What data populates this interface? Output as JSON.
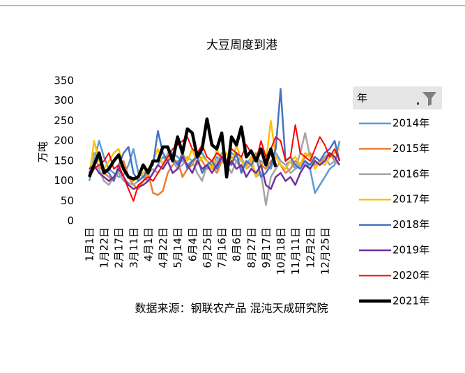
{
  "chart_data": {
    "type": "line",
    "title": "大豆周度到港",
    "y_label": "万吨",
    "source": "数据来源：钢联农产品 混沌天成研究院",
    "legend_title": "年",
    "legend_position": "right",
    "categories": [
      "1月1日",
      null,
      null,
      "1月22日",
      null,
      null,
      "2月17日",
      null,
      null,
      "3月11日",
      null,
      null,
      "4月1日",
      null,
      null,
      "4月22日",
      null,
      null,
      "5月14日",
      null,
      null,
      "6月4日",
      null,
      null,
      "6月25日",
      null,
      null,
      "7月16日",
      null,
      null,
      "8月6日",
      null,
      null,
      "8月27日",
      null,
      null,
      "9月17日",
      null,
      null,
      "10月18日",
      null,
      null,
      "11月11日",
      null,
      null,
      "12月2日",
      null,
      null,
      "12月25日",
      null,
      null,
      null
    ],
    "ylim": [
      0,
      350
    ],
    "yticks": [
      0,
      50,
      100,
      150,
      200,
      250,
      300,
      350
    ],
    "series": [
      {
        "name": "2014年",
        "color": "#5b9bd5",
        "width": 2.5,
        "values": [
          100,
          150,
          200,
          160,
          130,
          120,
          110,
          115,
          140,
          180,
          120,
          110,
          100,
          120,
          140,
          160,
          150,
          170,
          160,
          150,
          140,
          150,
          160,
          170,
          150,
          140,
          160,
          150,
          140,
          170,
          160,
          150,
          140,
          160,
          150,
          150,
          140,
          130,
          170,
          150,
          140,
          150,
          130,
          140,
          150,
          130,
          70,
          90,
          110,
          130,
          140,
          200
        ]
      },
      {
        "name": "2015年",
        "color": "#ed7d31",
        "width": 2.5,
        "values": [
          110,
          130,
          140,
          120,
          110,
          100,
          130,
          150,
          110,
          90,
          80,
          100,
          120,
          70,
          65,
          75,
          120,
          140,
          150,
          110,
          130,
          140,
          170,
          150,
          130,
          140,
          120,
          150,
          140,
          160,
          150,
          130,
          140,
          150,
          170,
          140,
          130,
          150,
          160,
          140,
          120,
          130,
          150,
          140,
          160,
          170,
          150,
          140,
          160,
          170,
          150,
          140
        ]
      },
      {
        "name": "2016年",
        "color": "#a5a5a5",
        "width": 2.5,
        "values": [
          120,
          170,
          130,
          100,
          90,
          110,
          120,
          100,
          95,
          90,
          100,
          110,
          120,
          130,
          120,
          140,
          170,
          150,
          130,
          140,
          160,
          150,
          120,
          100,
          140,
          130,
          150,
          170,
          140,
          120,
          150,
          160,
          130,
          140,
          110,
          120,
          40,
          110,
          130,
          150,
          140,
          120,
          130,
          170,
          220,
          160,
          140,
          150,
          160,
          140,
          150,
          140
        ]
      },
      {
        "name": "2017年",
        "color": "#ffc000",
        "width": 2.5,
        "values": [
          110,
          200,
          150,
          130,
          150,
          170,
          180,
          130,
          110,
          100,
          110,
          120,
          130,
          150,
          180,
          140,
          160,
          150,
          200,
          170,
          150,
          180,
          140,
          160,
          150,
          130,
          180,
          150,
          170,
          140,
          190,
          150,
          130,
          160,
          110,
          140,
          150,
          250,
          160,
          140,
          130,
          150,
          160,
          140,
          170,
          160,
          130,
          150,
          140,
          160,
          170,
          180
        ]
      },
      {
        "name": "2018年",
        "color": "#4472c4",
        "width": 2.5,
        "values": [
          120,
          140,
          160,
          130,
          120,
          100,
          140,
          170,
          185,
          120,
          100,
          110,
          130,
          140,
          225,
          170,
          150,
          160,
          140,
          170,
          130,
          150,
          160,
          120,
          140,
          150,
          130,
          160,
          150,
          140,
          170,
          120,
          150,
          140,
          160,
          110,
          120,
          140,
          180,
          330,
          150,
          160,
          140,
          130,
          150,
          140,
          160,
          150,
          170,
          180,
          200,
          150
        ]
      },
      {
        "name": "2019年",
        "color": "#7030a0",
        "width": 2.5,
        "values": [
          130,
          140,
          120,
          110,
          100,
          110,
          130,
          110,
          90,
          80,
          85,
          90,
          100,
          120,
          140,
          130,
          150,
          120,
          130,
          160,
          140,
          120,
          150,
          130,
          140,
          120,
          140,
          160,
          130,
          150,
          130,
          140,
          110,
          130,
          120,
          140,
          90,
          80,
          110,
          120,
          100,
          110,
          90,
          120,
          140,
          130,
          150,
          140,
          150,
          170,
          160,
          140
        ]
      },
      {
        "name": "2020年",
        "color": "#ff0000",
        "width": 2,
        "values": [
          120,
          130,
          140,
          150,
          170,
          130,
          140,
          110,
          80,
          50,
          90,
          100,
          110,
          100,
          120,
          140,
          160,
          180,
          190,
          200,
          210,
          180,
          170,
          190,
          160,
          150,
          170,
          160,
          150,
          180,
          170,
          160,
          190,
          170,
          150,
          200,
          160,
          180,
          210,
          200,
          150,
          160,
          240,
          170,
          160,
          150,
          180,
          210,
          190,
          160,
          180,
          150
        ]
      },
      {
        "name": "2021年",
        "color": "#000000",
        "width": 4.5,
        "values": [
          110,
          140,
          170,
          120,
          130,
          150,
          165,
          130,
          110,
          105,
          110,
          140,
          120,
          150,
          150,
          185,
          185,
          150,
          210,
          170,
          230,
          220,
          160,
          180,
          255,
          190,
          180,
          220,
          110,
          210,
          190,
          235,
          160,
          175,
          150,
          180,
          140,
          180,
          135,
          null,
          null,
          null,
          null,
          null,
          null,
          null,
          null,
          null,
          null,
          null,
          null,
          null
        ]
      }
    ]
  }
}
